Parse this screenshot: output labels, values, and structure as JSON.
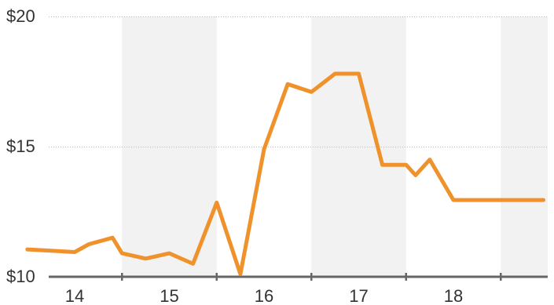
{
  "chart_data": {
    "type": "line",
    "title": "",
    "xlabel": "",
    "ylabel": "",
    "y_ticks": [
      "$10",
      "$15",
      "$20"
    ],
    "y_tick_values": [
      10,
      15,
      20
    ],
    "ylim": [
      10,
      20
    ],
    "x_ticks": [
      "14",
      "15",
      "16",
      "17",
      "18"
    ],
    "x_tick_values": [
      14,
      15,
      16,
      17,
      18
    ],
    "xlim": [
      13.5,
      18.95
    ],
    "band_shading": "alternating year bands",
    "grid": true,
    "colors": {
      "line": "#F0922B",
      "band": "#F2F2F2",
      "grid": "#BBBBBB",
      "axis": "#666666"
    },
    "series": [
      {
        "x": [
          13.5,
          13.75,
          14.0,
          14.15,
          14.4,
          14.5,
          14.75,
          15.0,
          15.25,
          15.5,
          15.75,
          16.0,
          16.25,
          16.5,
          16.75,
          17.0,
          17.25,
          17.5,
          17.6,
          17.75,
          18.0,
          18.25,
          18.5,
          18.75,
          18.95
        ],
        "values": [
          11.05,
          11.0,
          10.95,
          11.25,
          11.5,
          10.9,
          10.7,
          10.9,
          10.5,
          12.85,
          10.1,
          14.9,
          17.4,
          17.1,
          17.8,
          17.8,
          14.3,
          14.3,
          13.9,
          14.5,
          12.95,
          12.95,
          12.95,
          12.95,
          12.95
        ]
      }
    ]
  }
}
